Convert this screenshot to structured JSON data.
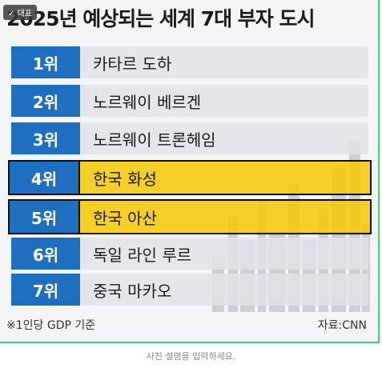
{
  "badge": "대표",
  "title": "2025년 예상되는 세계 7대 부자 도시",
  "rows": [
    [
      "1위",
      "카타르 도하"
    ],
    [
      "2위",
      "노르웨이 베르겐"
    ],
    [
      "3위",
      "노르웨이 트론헤임"
    ],
    [
      "4위",
      "한국 화성"
    ],
    [
      "5위",
      "한국 아산"
    ],
    [
      "6위",
      "독일 라인 루르"
    ],
    [
      "7위",
      "중국 마카오"
    ]
  ],
  "footnote": "※1인당 GDP 기준",
  "source": "자료:CNN",
  "caption": "사진 설명을 입력하세요."
}
